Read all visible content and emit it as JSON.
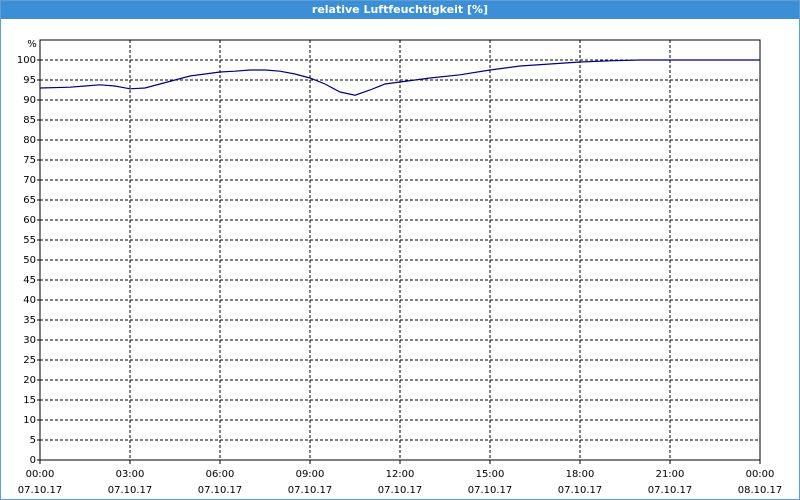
{
  "chart_data": {
    "type": "line",
    "title": "relative Luftfeuchtigkeit [%]",
    "y_label": "%",
    "x": [
      0,
      1,
      1.5,
      2,
      2.5,
      3,
      3.5,
      4,
      4.5,
      5,
      5.5,
      6,
      6.5,
      7,
      7.5,
      8,
      8.5,
      9,
      9.5,
      10,
      10.5,
      11,
      11.5,
      12,
      13,
      14,
      15,
      16,
      17,
      18,
      19,
      20,
      21,
      22,
      23,
      24
    ],
    "series": [
      {
        "name": "relative Luftfeuchtigkeit",
        "color": "#000080",
        "values": [
          93,
          93.2,
          93.5,
          93.8,
          93.5,
          92.8,
          93,
          94,
          95,
          96,
          96.5,
          97,
          97.2,
          97.5,
          97.5,
          97.2,
          96.5,
          95.5,
          94,
          92,
          91.2,
          92.5,
          94,
          94.5,
          95.5,
          96.3,
          97.5,
          98.5,
          99,
          99.5,
          99.8,
          100,
          100,
          100,
          100,
          100
        ]
      }
    ],
    "xlim": [
      0,
      24
    ],
    "xticks": [
      {
        "value": 0,
        "label": "00:00"
      },
      {
        "value": 3,
        "label": "03:00"
      },
      {
        "value": 6,
        "label": "06:00"
      },
      {
        "value": 9,
        "label": "09:00"
      },
      {
        "value": 12,
        "label": "12:00"
      },
      {
        "value": 15,
        "label": "15:00"
      },
      {
        "value": 18,
        "label": "18:00"
      },
      {
        "value": 21,
        "label": "21:00"
      },
      {
        "value": 24,
        "label": "00:00"
      }
    ],
    "xtick_dates": [
      "07.10.17",
      "07.10.17",
      "07.10.17",
      "07.10.17",
      "07.10.17",
      "07.10.17",
      "07.10.17",
      "07.10.17",
      "08.10.17"
    ],
    "ylim": [
      0,
      105
    ],
    "yticks": [
      0,
      5,
      10,
      15,
      20,
      25,
      30,
      35,
      40,
      45,
      50,
      55,
      60,
      65,
      70,
      75,
      80,
      85,
      90,
      95,
      100
    ],
    "grid": true
  }
}
